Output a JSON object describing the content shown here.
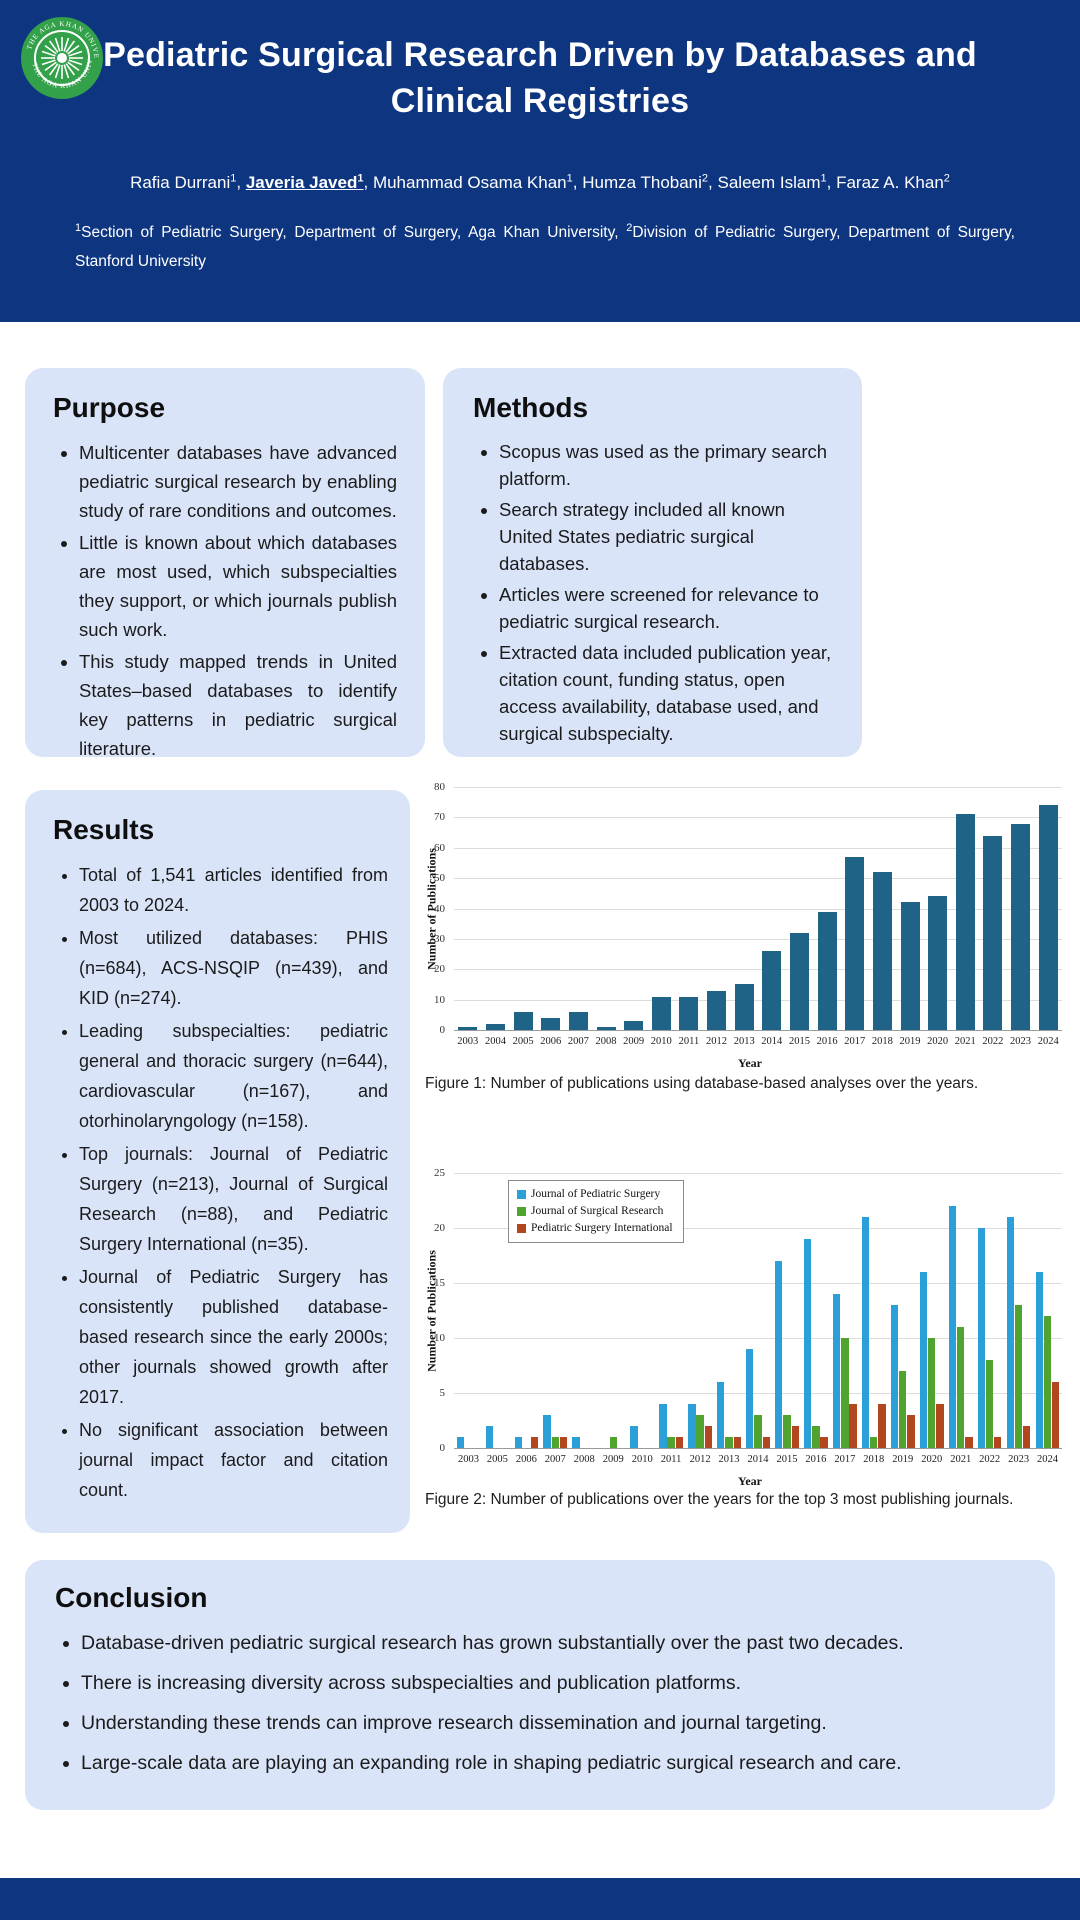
{
  "header": {
    "title_lines": [
      "Pediatric Surgical Research Driven by Databases and",
      "Clinical Registries"
    ],
    "authors": [
      {
        "name": "Rafia Durrani",
        "sup": "1",
        "emphasis": false
      },
      {
        "name": "Javeria Javed",
        "sup": "1",
        "emphasis": true
      },
      {
        "name": "Muhammad Osama Khan",
        "sup": "1",
        "emphasis": false
      },
      {
        "name": "Humza Thobani",
        "sup": "2",
        "emphasis": false
      },
      {
        "name": "Saleem Islam",
        "sup": "1",
        "emphasis": false
      },
      {
        "name": "Faraz A. Khan",
        "sup": "2",
        "emphasis": false
      }
    ],
    "affiliations": [
      {
        "sup": "1",
        "text": "Section of Pediatric Surgery, Department of Surgery, Aga Khan University, "
      },
      {
        "sup": "2",
        "text": "Division of Pediatric Surgery, Department of Surgery, Stanford University"
      }
    ],
    "logo_text": "THE AGA KHAN UNIVERSITY"
  },
  "sections": {
    "purpose": {
      "heading": "Purpose",
      "bullets": [
        "Multicenter databases have advanced pediatric surgical research by enabling study of rare conditions and outcomes.",
        "Little is known about which databases are most used, which subspecialties they support, or which journals publish such work.",
        "This study mapped trends in United States–based databases to identify key patterns in pediatric surgical literature."
      ]
    },
    "methods": {
      "heading": "Methods",
      "bullets": [
        "Scopus was used as the primary search platform.",
        "Search strategy included all known United States pediatric surgical databases.",
        "Articles were screened for relevance to pediatric surgical research.",
        "Extracted data included publication year, citation count, funding status, open access availability, database used, and surgical subspecialty."
      ]
    },
    "results": {
      "heading": "Results",
      "bullets": [
        "Total of 1,541 articles identified from 2003 to 2024.",
        "Most utilized databases: PHIS (n=684), ACS-NSQIP (n=439), and KID (n=274).",
        "Leading subspecialties: pediatric general and thoracic surgery (n=644), cardiovascular (n=167), and otorhinolaryngology (n=158).",
        "Top journals: Journal of Pediatric Surgery (n=213), Journal of Surgical Research (n=88), and Pediatric Surgery International (n=35).",
        "Journal of Pediatric Surgery has consistently published database-based research since the early 2000s; other journals showed growth after 2017.",
        "No significant association between journal impact factor and citation count."
      ]
    },
    "conclusion": {
      "heading": "Conclusion",
      "bullets": [
        "Database-driven pediatric surgical research has grown substantially over the past two decades.",
        "There is increasing diversity across subspecialties and publication platforms.",
        "Understanding these trends can improve research dissemination and journal targeting.",
        "Large-scale data are playing an expanding role in shaping pediatric surgical research and care."
      ]
    }
  },
  "figures": {
    "figure1_caption": "Figure 1: Number of publications using database-based analyses over the years.",
    "figure2_caption": "Figure 2: Number of publications over the years for the top 3 most publishing journals."
  },
  "colors": {
    "header_navy": "#0e3580",
    "panel_blue": "#d9e4f9",
    "fig1_bar": "#1f6387",
    "fig2_blue": "#2b9fd8",
    "fig2_green": "#4fa32e",
    "fig2_red": "#b2461e"
  },
  "chart_data": [
    {
      "type": "bar",
      "title": "",
      "xlabel": "Year",
      "ylabel": "Number of Publications",
      "ylim": [
        0,
        80
      ],
      "ystep": 10,
      "grid": true,
      "categories": [
        "2003",
        "2004",
        "2005",
        "2006",
        "2007",
        "2008",
        "2009",
        "2010",
        "2011",
        "2012",
        "2013",
        "2014",
        "2015",
        "2016",
        "2017",
        "2018",
        "2019",
        "2020",
        "2021",
        "2022",
        "2023",
        "2024"
      ],
      "series": [
        {
          "name": "Publications",
          "color": "#1f6387",
          "values": [
            1,
            2,
            6,
            4,
            6,
            1,
            3,
            11,
            11,
            13,
            15,
            26,
            32,
            39,
            57,
            52,
            42,
            44,
            71,
            64,
            68,
            74
          ]
        }
      ]
    },
    {
      "type": "bar",
      "title": "",
      "xlabel": "Year",
      "ylabel": "Number of Publications",
      "ylim": [
        0,
        25
      ],
      "ystep": 5,
      "grid": true,
      "legend_position": "top-left",
      "categories": [
        "2003",
        "2005",
        "2006",
        "2007",
        "2008",
        "2009",
        "2010",
        "2011",
        "2012",
        "2013",
        "2014",
        "2015",
        "2016",
        "2017",
        "2018",
        "2019",
        "2020",
        "2021",
        "2022",
        "2023",
        "2024"
      ],
      "series": [
        {
          "name": "Journal of Pediatric Surgery",
          "color": "#2b9fd8",
          "values": [
            1,
            2,
            1,
            3,
            1,
            0,
            2,
            4,
            4,
            6,
            9,
            17,
            19,
            14,
            21,
            13,
            16,
            22,
            20,
            21,
            16
          ]
        },
        {
          "name": "Journal of Surgical Research",
          "color": "#4fa32e",
          "values": [
            0,
            0,
            0,
            1,
            0,
            1,
            0,
            1,
            3,
            1,
            3,
            3,
            2,
            10,
            1,
            7,
            10,
            11,
            8,
            13,
            12
          ]
        },
        {
          "name": "Pediatric Surgery International",
          "color": "#b2461e",
          "values": [
            0,
            0,
            1,
            1,
            0,
            0,
            0,
            1,
            2,
            1,
            1,
            2,
            1,
            4,
            4,
            3,
            4,
            1,
            1,
            2,
            6
          ]
        }
      ]
    }
  ]
}
